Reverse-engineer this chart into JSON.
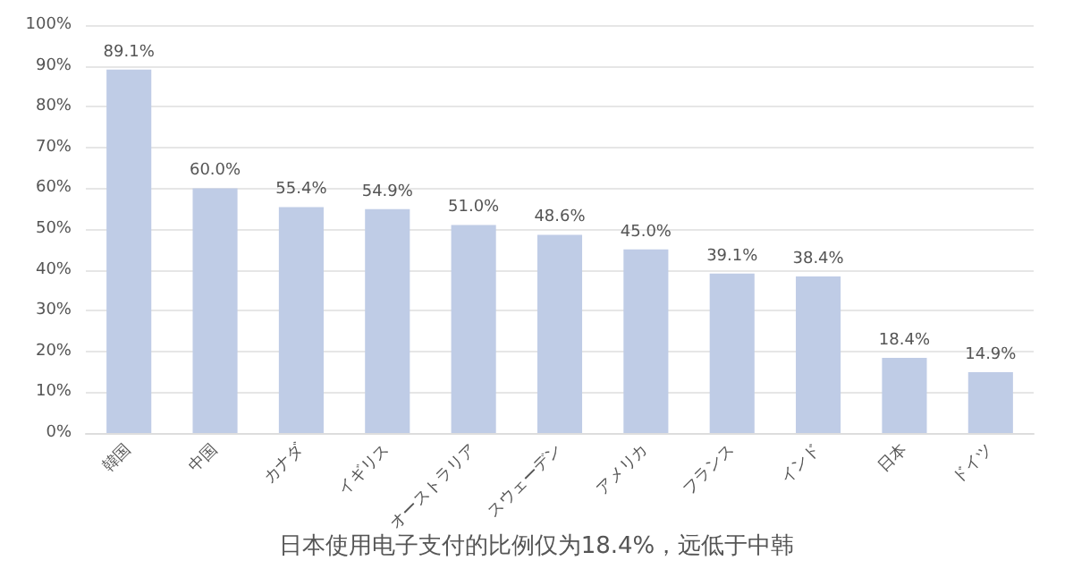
{
  "chart_data": {
    "type": "bar",
    "categories": [
      "韓国",
      "中国",
      "カナダ",
      "イギリス",
      "オーストラリア",
      "スウェーデン",
      "アメリカ",
      "フランス",
      "インド",
      "日本",
      "ドイツ"
    ],
    "values": [
      89.1,
      60.0,
      55.4,
      54.9,
      51.0,
      48.6,
      45.0,
      39.1,
      38.4,
      18.4,
      14.9
    ],
    "value_labels": [
      "89.1%",
      "60.0%",
      "55.4%",
      "54.9%",
      "51.0%",
      "48.6%",
      "45.0%",
      "39.1%",
      "38.4%",
      "18.4%",
      "14.9%"
    ],
    "color": "#bfcce6",
    "ylim": [
      0,
      100
    ],
    "yticks": [
      {
        "value": 0,
        "label": "0%"
      },
      {
        "value": 10,
        "label": "10%"
      },
      {
        "value": 20,
        "label": "20%"
      },
      {
        "value": 30,
        "label": "30%"
      },
      {
        "value": 40,
        "label": "40%"
      },
      {
        "value": 50,
        "label": "50%"
      },
      {
        "value": 60,
        "label": "60%"
      },
      {
        "value": 70,
        "label": "70%"
      },
      {
        "value": 80,
        "label": "80%"
      },
      {
        "value": 90,
        "label": "90%"
      },
      {
        "value": 100,
        "label": "100%"
      }
    ],
    "grid": "y",
    "annotations": [
      "日本使用电子支付的比例仅为18.4%，远低于中韩"
    ]
  }
}
